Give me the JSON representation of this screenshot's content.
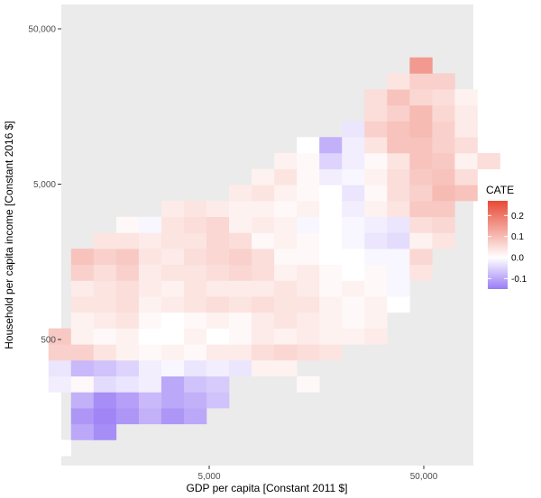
{
  "chart_data": {
    "type": "heatmap",
    "xlabel": "GDP per capita [Constant 2011 $]",
    "ylabel": "Household per capita income [Constant 2016 $]",
    "x_scale": "log10",
    "y_scale": "log10",
    "x_ticks": [
      {
        "value": 5000,
        "label": "5,000"
      },
      {
        "value": 50000,
        "label": "50,000"
      }
    ],
    "y_ticks": [
      {
        "value": 500,
        "label": "500"
      },
      {
        "value": 5000,
        "label": "5,000"
      },
      {
        "value": 50000,
        "label": "50,000"
      }
    ],
    "grid": false,
    "legend": {
      "title": "CATE",
      "position": "right",
      "ticks": [
        {
          "value": 0.2,
          "label": "0.2"
        },
        {
          "value": 0.1,
          "label": "0.1"
        },
        {
          "value": 0.0,
          "label": "0.0"
        },
        {
          "value": -0.1,
          "label": "-0.1"
        }
      ],
      "range": [
        -0.15,
        0.27
      ]
    },
    "colors": {
      "low": "#9a7cf5",
      "mid": "#ffffff",
      "high": "#e84a35",
      "panel": "#ebebeb"
    },
    "grid_origin": {
      "log10_x": 2.95,
      "log10_y": 1.95
    },
    "cell_size_log10": {
      "x": 0.1052,
      "y": 0.1026
    },
    "cells": [
      {
        "col": 0,
        "row": 0,
        "v": 0.0
      },
      {
        "col": 1,
        "row": 1,
        "v": -0.1
      },
      {
        "col": 2,
        "row": 1,
        "v": -0.13
      },
      {
        "col": 1,
        "row": 2,
        "v": -0.12
      },
      {
        "col": 2,
        "row": 2,
        "v": -0.14
      },
      {
        "col": 3,
        "row": 2,
        "v": -0.12
      },
      {
        "col": 4,
        "row": 2,
        "v": -0.09
      },
      {
        "col": 5,
        "row": 2,
        "v": -0.12
      },
      {
        "col": 6,
        "row": 2,
        "v": -0.1
      },
      {
        "col": 1,
        "row": 3,
        "v": -0.09
      },
      {
        "col": 2,
        "row": 3,
        "v": -0.13
      },
      {
        "col": 3,
        "row": 3,
        "v": -0.11
      },
      {
        "col": 4,
        "row": 3,
        "v": -0.08
      },
      {
        "col": 5,
        "row": 3,
        "v": -0.1
      },
      {
        "col": 6,
        "row": 3,
        "v": -0.09
      },
      {
        "col": 7,
        "row": 3,
        "v": -0.07
      },
      {
        "col": 0,
        "row": 4,
        "v": -0.02
      },
      {
        "col": 1,
        "row": 4,
        "v": 0.01
      },
      {
        "col": 2,
        "row": 4,
        "v": -0.04
      },
      {
        "col": 3,
        "row": 4,
        "v": -0.03
      },
      {
        "col": 4,
        "row": 4,
        "v": -0.02
      },
      {
        "col": 5,
        "row": 4,
        "v": -0.1
      },
      {
        "col": 6,
        "row": 4,
        "v": -0.07
      },
      {
        "col": 7,
        "row": 4,
        "v": -0.06
      },
      {
        "col": 11,
        "row": 4,
        "v": 0.01
      },
      {
        "col": 0,
        "row": 5,
        "v": -0.03
      },
      {
        "col": 1,
        "row": 5,
        "v": -0.08
      },
      {
        "col": 2,
        "row": 5,
        "v": -0.07
      },
      {
        "col": 3,
        "row": 5,
        "v": -0.05
      },
      {
        "col": 4,
        "row": 5,
        "v": -0.02
      },
      {
        "col": 5,
        "row": 5,
        "v": -0.01
      },
      {
        "col": 6,
        "row": 5,
        "v": -0.03
      },
      {
        "col": 7,
        "row": 5,
        "v": -0.02
      },
      {
        "col": 8,
        "row": 5,
        "v": -0.03
      },
      {
        "col": 9,
        "row": 5,
        "v": 0.02
      },
      {
        "col": 10,
        "row": 5,
        "v": 0.02
      },
      {
        "col": 0,
        "row": 6,
        "v": 0.07
      },
      {
        "col": 1,
        "row": 6,
        "v": 0.07
      },
      {
        "col": 2,
        "row": 6,
        "v": 0.04
      },
      {
        "col": 3,
        "row": 6,
        "v": 0.02
      },
      {
        "col": 4,
        "row": 6,
        "v": 0.01
      },
      {
        "col": 5,
        "row": 6,
        "v": 0.02
      },
      {
        "col": 6,
        "row": 6,
        "v": 0.01
      },
      {
        "col": 7,
        "row": 6,
        "v": 0.03
      },
      {
        "col": 8,
        "row": 6,
        "v": 0.03
      },
      {
        "col": 9,
        "row": 6,
        "v": 0.05
      },
      {
        "col": 10,
        "row": 6,
        "v": 0.06
      },
      {
        "col": 11,
        "row": 6,
        "v": 0.05
      },
      {
        "col": 12,
        "row": 6,
        "v": 0.04
      },
      {
        "col": 0,
        "row": 7,
        "v": 0.08
      },
      {
        "col": 1,
        "row": 7,
        "v": 0.02
      },
      {
        "col": 2,
        "row": 7,
        "v": 0.01
      },
      {
        "col": 3,
        "row": 7,
        "v": 0.02
      },
      {
        "col": 4,
        "row": 7,
        "v": 0.0
      },
      {
        "col": 5,
        "row": 7,
        "v": 0.0
      },
      {
        "col": 6,
        "row": 7,
        "v": 0.02
      },
      {
        "col": 7,
        "row": 7,
        "v": 0.0
      },
      {
        "col": 8,
        "row": 7,
        "v": 0.01
      },
      {
        "col": 9,
        "row": 7,
        "v": 0.03
      },
      {
        "col": 10,
        "row": 7,
        "v": 0.02
      },
      {
        "col": 11,
        "row": 7,
        "v": 0.03
      },
      {
        "col": 12,
        "row": 7,
        "v": 0.02
      },
      {
        "col": 13,
        "row": 7,
        "v": 0.02
      },
      {
        "col": 14,
        "row": 7,
        "v": 0.03
      },
      {
        "col": 1,
        "row": 8,
        "v": 0.02
      },
      {
        "col": 2,
        "row": 8,
        "v": 0.03
      },
      {
        "col": 3,
        "row": 8,
        "v": 0.04
      },
      {
        "col": 4,
        "row": 8,
        "v": 0.01
      },
      {
        "col": 5,
        "row": 8,
        "v": 0.0
      },
      {
        "col": 6,
        "row": 8,
        "v": 0.01
      },
      {
        "col": 7,
        "row": 8,
        "v": 0.02
      },
      {
        "col": 8,
        "row": 8,
        "v": 0.01
      },
      {
        "col": 9,
        "row": 8,
        "v": 0.03
      },
      {
        "col": 10,
        "row": 8,
        "v": 0.04
      },
      {
        "col": 11,
        "row": 8,
        "v": 0.03
      },
      {
        "col": 12,
        "row": 8,
        "v": 0.02
      },
      {
        "col": 13,
        "row": 8,
        "v": 0.01
      },
      {
        "col": 14,
        "row": 8,
        "v": 0.02
      },
      {
        "col": 1,
        "row": 9,
        "v": 0.04
      },
      {
        "col": 2,
        "row": 9,
        "v": 0.04
      },
      {
        "col": 3,
        "row": 9,
        "v": 0.05
      },
      {
        "col": 4,
        "row": 9,
        "v": 0.02
      },
      {
        "col": 5,
        "row": 9,
        "v": 0.03
      },
      {
        "col": 6,
        "row": 9,
        "v": 0.04
      },
      {
        "col": 7,
        "row": 9,
        "v": 0.05
      },
      {
        "col": 8,
        "row": 9,
        "v": 0.04
      },
      {
        "col": 9,
        "row": 9,
        "v": 0.05
      },
      {
        "col": 10,
        "row": 9,
        "v": 0.04
      },
      {
        "col": 11,
        "row": 9,
        "v": 0.04
      },
      {
        "col": 12,
        "row": 9,
        "v": 0.02
      },
      {
        "col": 13,
        "row": 9,
        "v": 0.01
      },
      {
        "col": 14,
        "row": 9,
        "v": 0.02
      },
      {
        "col": 15,
        "row": 9,
        "v": 0.0
      },
      {
        "col": 1,
        "row": 10,
        "v": 0.03
      },
      {
        "col": 2,
        "row": 10,
        "v": 0.04
      },
      {
        "col": 3,
        "row": 10,
        "v": 0.05
      },
      {
        "col": 4,
        "row": 10,
        "v": 0.03
      },
      {
        "col": 5,
        "row": 10,
        "v": 0.02
      },
      {
        "col": 6,
        "row": 10,
        "v": 0.04
      },
      {
        "col": 7,
        "row": 10,
        "v": 0.03
      },
      {
        "col": 8,
        "row": 10,
        "v": 0.03
      },
      {
        "col": 9,
        "row": 10,
        "v": 0.03
      },
      {
        "col": 10,
        "row": 10,
        "v": 0.04
      },
      {
        "col": 11,
        "row": 10,
        "v": 0.03
      },
      {
        "col": 12,
        "row": 10,
        "v": 0.01
      },
      {
        "col": 13,
        "row": 10,
        "v": 0.02
      },
      {
        "col": 14,
        "row": 10,
        "v": 0.01
      },
      {
        "col": 15,
        "row": 10,
        "v": -0.01
      },
      {
        "col": 1,
        "row": 11,
        "v": 0.07
      },
      {
        "col": 2,
        "row": 11,
        "v": 0.05
      },
      {
        "col": 3,
        "row": 11,
        "v": 0.07
      },
      {
        "col": 4,
        "row": 11,
        "v": 0.03
      },
      {
        "col": 5,
        "row": 11,
        "v": 0.04
      },
      {
        "col": 6,
        "row": 11,
        "v": 0.04
      },
      {
        "col": 7,
        "row": 11,
        "v": 0.05
      },
      {
        "col": 8,
        "row": 11,
        "v": 0.06
      },
      {
        "col": 9,
        "row": 11,
        "v": 0.05
      },
      {
        "col": 10,
        "row": 11,
        "v": 0.02
      },
      {
        "col": 11,
        "row": 11,
        "v": 0.03
      },
      {
        "col": 12,
        "row": 11,
        "v": 0.01
      },
      {
        "col": 13,
        "row": 11,
        "v": 0.0
      },
      {
        "col": 14,
        "row": 11,
        "v": 0.01
      },
      {
        "col": 15,
        "row": 11,
        "v": -0.01
      },
      {
        "col": 16,
        "row": 11,
        "v": 0.04
      },
      {
        "col": 1,
        "row": 12,
        "v": 0.09
      },
      {
        "col": 2,
        "row": 12,
        "v": 0.07
      },
      {
        "col": 3,
        "row": 12,
        "v": 0.08
      },
      {
        "col": 4,
        "row": 12,
        "v": 0.04
      },
      {
        "col": 5,
        "row": 12,
        "v": 0.03
      },
      {
        "col": 6,
        "row": 12,
        "v": 0.05
      },
      {
        "col": 7,
        "row": 12,
        "v": 0.06
      },
      {
        "col": 8,
        "row": 12,
        "v": 0.07
      },
      {
        "col": 9,
        "row": 12,
        "v": 0.05
      },
      {
        "col": 10,
        "row": 12,
        "v": 0.01
      },
      {
        "col": 11,
        "row": 12,
        "v": 0.01
      },
      {
        "col": 12,
        "row": 12,
        "v": 0.0
      },
      {
        "col": 13,
        "row": 12,
        "v": 0.0
      },
      {
        "col": 14,
        "row": 12,
        "v": -0.01
      },
      {
        "col": 15,
        "row": 12,
        "v": -0.01
      },
      {
        "col": 16,
        "row": 12,
        "v": 0.06
      },
      {
        "col": 2,
        "row": 13,
        "v": 0.04
      },
      {
        "col": 3,
        "row": 13,
        "v": 0.04
      },
      {
        "col": 4,
        "row": 13,
        "v": 0.03
      },
      {
        "col": 5,
        "row": 13,
        "v": 0.04
      },
      {
        "col": 6,
        "row": 13,
        "v": 0.04
      },
      {
        "col": 7,
        "row": 13,
        "v": 0.06
      },
      {
        "col": 8,
        "row": 13,
        "v": 0.05
      },
      {
        "col": 9,
        "row": 13,
        "v": 0.01
      },
      {
        "col": 10,
        "row": 13,
        "v": 0.02
      },
      {
        "col": 11,
        "row": 13,
        "v": 0.01
      },
      {
        "col": 12,
        "row": 13,
        "v": 0.0
      },
      {
        "col": 13,
        "row": 13,
        "v": -0.01
      },
      {
        "col": 14,
        "row": 13,
        "v": -0.03
      },
      {
        "col": 15,
        "row": 13,
        "v": -0.04
      },
      {
        "col": 16,
        "row": 13,
        "v": 0.02
      },
      {
        "col": 17,
        "row": 13,
        "v": 0.04
      },
      {
        "col": 3,
        "row": 14,
        "v": 0.01
      },
      {
        "col": 4,
        "row": 14,
        "v": -0.01
      },
      {
        "col": 5,
        "row": 14,
        "v": 0.04
      },
      {
        "col": 6,
        "row": 14,
        "v": 0.05
      },
      {
        "col": 7,
        "row": 14,
        "v": 0.06
      },
      {
        "col": 8,
        "row": 14,
        "v": 0.02
      },
      {
        "col": 9,
        "row": 14,
        "v": 0.03
      },
      {
        "col": 10,
        "row": 14,
        "v": 0.02
      },
      {
        "col": 11,
        "row": 14,
        "v": -0.01
      },
      {
        "col": 12,
        "row": 14,
        "v": 0.0
      },
      {
        "col": 13,
        "row": 14,
        "v": -0.01
      },
      {
        "col": 14,
        "row": 14,
        "v": -0.02
      },
      {
        "col": 15,
        "row": 14,
        "v": -0.03
      },
      {
        "col": 16,
        "row": 14,
        "v": 0.05
      },
      {
        "col": 17,
        "row": 14,
        "v": 0.06
      },
      {
        "col": 5,
        "row": 15,
        "v": 0.03
      },
      {
        "col": 6,
        "row": 15,
        "v": 0.04
      },
      {
        "col": 7,
        "row": 15,
        "v": 0.03
      },
      {
        "col": 8,
        "row": 15,
        "v": 0.02
      },
      {
        "col": 9,
        "row": 15,
        "v": 0.02
      },
      {
        "col": 10,
        "row": 15,
        "v": 0.01
      },
      {
        "col": 11,
        "row": 15,
        "v": 0.02
      },
      {
        "col": 12,
        "row": 15,
        "v": 0.0
      },
      {
        "col": 13,
        "row": 15,
        "v": -0.02
      },
      {
        "col": 14,
        "row": 15,
        "v": 0.02
      },
      {
        "col": 15,
        "row": 15,
        "v": 0.04
      },
      {
        "col": 16,
        "row": 15,
        "v": 0.08
      },
      {
        "col": 17,
        "row": 15,
        "v": 0.08
      },
      {
        "col": 8,
        "row": 16,
        "v": 0.03
      },
      {
        "col": 9,
        "row": 16,
        "v": 0.04
      },
      {
        "col": 10,
        "row": 16,
        "v": 0.02
      },
      {
        "col": 11,
        "row": 16,
        "v": 0.01
      },
      {
        "col": 12,
        "row": 16,
        "v": 0.0
      },
      {
        "col": 13,
        "row": 16,
        "v": -0.03
      },
      {
        "col": 14,
        "row": 16,
        "v": 0.01
      },
      {
        "col": 15,
        "row": 16,
        "v": 0.05
      },
      {
        "col": 16,
        "row": 16,
        "v": 0.07
      },
      {
        "col": 17,
        "row": 16,
        "v": 0.1
      },
      {
        "col": 18,
        "row": 16,
        "v": 0.09
      },
      {
        "col": 9,
        "row": 17,
        "v": 0.02
      },
      {
        "col": 10,
        "row": 17,
        "v": 0.04
      },
      {
        "col": 11,
        "row": 17,
        "v": 0.01
      },
      {
        "col": 12,
        "row": 17,
        "v": -0.02
      },
      {
        "col": 13,
        "row": 17,
        "v": -0.01
      },
      {
        "col": 14,
        "row": 17,
        "v": 0.02
      },
      {
        "col": 15,
        "row": 17,
        "v": 0.05
      },
      {
        "col": 16,
        "row": 17,
        "v": 0.08
      },
      {
        "col": 17,
        "row": 17,
        "v": 0.09
      },
      {
        "col": 18,
        "row": 17,
        "v": 0.05
      },
      {
        "col": 10,
        "row": 18,
        "v": 0.02
      },
      {
        "col": 11,
        "row": 18,
        "v": 0.01
      },
      {
        "col": 12,
        "row": 18,
        "v": -0.05
      },
      {
        "col": 13,
        "row": 18,
        "v": -0.02
      },
      {
        "col": 14,
        "row": 18,
        "v": 0.01
      },
      {
        "col": 15,
        "row": 18,
        "v": 0.04
      },
      {
        "col": 16,
        "row": 18,
        "v": 0.09
      },
      {
        "col": 17,
        "row": 18,
        "v": 0.08
      },
      {
        "col": 18,
        "row": 18,
        "v": 0.02
      },
      {
        "col": 19,
        "row": 18,
        "v": 0.05
      },
      {
        "col": 11,
        "row": 19,
        "v": 0.0
      },
      {
        "col": 12,
        "row": 19,
        "v": -0.09
      },
      {
        "col": 13,
        "row": 19,
        "v": -0.02
      },
      {
        "col": 14,
        "row": 19,
        "v": 0.04
      },
      {
        "col": 15,
        "row": 19,
        "v": 0.09
      },
      {
        "col": 16,
        "row": 19,
        "v": 0.09
      },
      {
        "col": 17,
        "row": 19,
        "v": 0.07
      },
      {
        "col": 18,
        "row": 19,
        "v": 0.05
      },
      {
        "col": 13,
        "row": 20,
        "v": -0.03
      },
      {
        "col": 14,
        "row": 20,
        "v": 0.07
      },
      {
        "col": 15,
        "row": 20,
        "v": 0.09
      },
      {
        "col": 16,
        "row": 20,
        "v": 0.1
      },
      {
        "col": 17,
        "row": 20,
        "v": 0.07
      },
      {
        "col": 18,
        "row": 20,
        "v": 0.03
      },
      {
        "col": 14,
        "row": 21,
        "v": 0.05
      },
      {
        "col": 15,
        "row": 21,
        "v": 0.07
      },
      {
        "col": 16,
        "row": 21,
        "v": 0.1
      },
      {
        "col": 17,
        "row": 21,
        "v": 0.06
      },
      {
        "col": 18,
        "row": 21,
        "v": 0.03
      },
      {
        "col": 14,
        "row": 22,
        "v": 0.05
      },
      {
        "col": 15,
        "row": 22,
        "v": 0.09
      },
      {
        "col": 16,
        "row": 22,
        "v": 0.06
      },
      {
        "col": 17,
        "row": 22,
        "v": 0.05
      },
      {
        "col": 18,
        "row": 22,
        "v": 0.02
      },
      {
        "col": 15,
        "row": 23,
        "v": 0.04
      },
      {
        "col": 16,
        "row": 23,
        "v": 0.07
      },
      {
        "col": 17,
        "row": 23,
        "v": 0.07
      },
      {
        "col": 16,
        "row": 24,
        "v": 0.15
      }
    ]
  }
}
